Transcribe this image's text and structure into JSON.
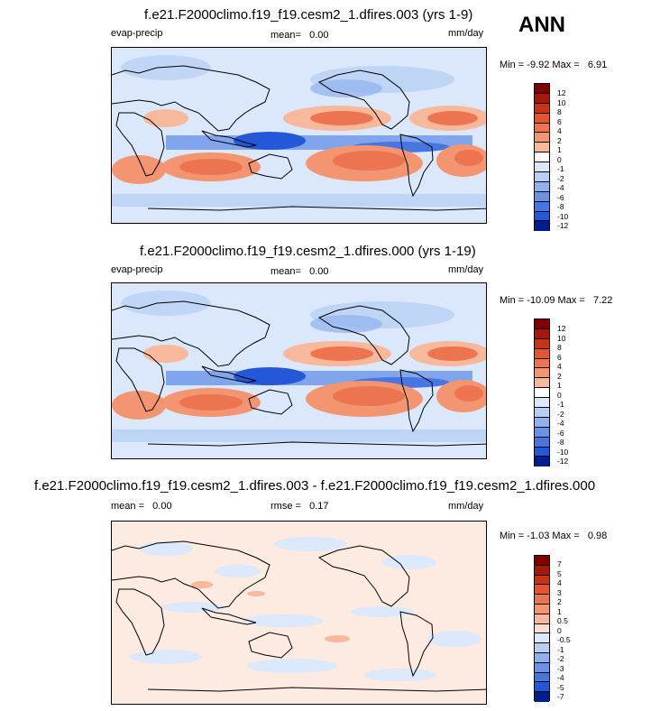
{
  "season": "ANN",
  "units": "mm/day",
  "variable": "evap-precip",
  "colors": {
    "pos": [
      "#fbded0",
      "#f8b89c",
      "#f49572",
      "#ec7451",
      "#e35530",
      "#c83318",
      "#a6180c",
      "#800000"
    ],
    "neg": [
      "#dce8fb",
      "#b7cff5",
      "#8fb1ee",
      "#6a93e8",
      "#4776e0",
      "#2458d8",
      "#0b38c4",
      "#021d8f"
    ],
    "zero": "#ffffff",
    "land_outline": "#000000"
  },
  "panels": [
    {
      "title": "f.e21.F2000climo.f19_f19.cesm2_1.dfires.003 (yrs 1-9)",
      "left_label": "evap-precip",
      "mid_label": "mean=",
      "mid_value": "0.00",
      "right_label": "mm/day",
      "min_label": "Min =",
      "min_value": "-9.92",
      "max_label": "Max =",
      "max_value": "6.91",
      "colorbar_ticks": [
        "12",
        "10",
        "8",
        "6",
        "4",
        "2",
        "1",
        "0",
        "-1",
        "-2",
        "-4",
        "-6",
        "-8",
        "-10",
        "-12"
      ]
    },
    {
      "title": "f.e21.F2000climo.f19_f19.cesm2_1.dfires.000 (yrs 1-19)",
      "left_label": "evap-precip",
      "mid_label": "mean=",
      "mid_value": "0.00",
      "right_label": "mm/day",
      "min_label": "Min =",
      "min_value": "-10.09",
      "max_label": "Max =",
      "max_value": "7.22",
      "colorbar_ticks": [
        "12",
        "10",
        "8",
        "6",
        "4",
        "2",
        "1",
        "0",
        "-1",
        "-2",
        "-4",
        "-6",
        "-8",
        "-10",
        "-12"
      ]
    },
    {
      "title": "f.e21.F2000climo.f19_f19.cesm2_1.dfires.003 - f.e21.F2000climo.f19_f19.cesm2_1.dfires.000",
      "left_label": "mean =",
      "left_value": "0.00",
      "mid_label": "rmse =",
      "mid_value": "0.17",
      "right_label": "mm/day",
      "min_label": "Min =",
      "min_value": "-1.03",
      "max_label": "Max =",
      "max_value": "0.98",
      "colorbar_ticks": [
        "7",
        "5",
        "4",
        "3",
        "2",
        "1",
        "0.5",
        "0",
        "-0.5",
        "-1",
        "-2",
        "-3",
        "-4",
        "-5",
        "-7"
      ]
    }
  ]
}
